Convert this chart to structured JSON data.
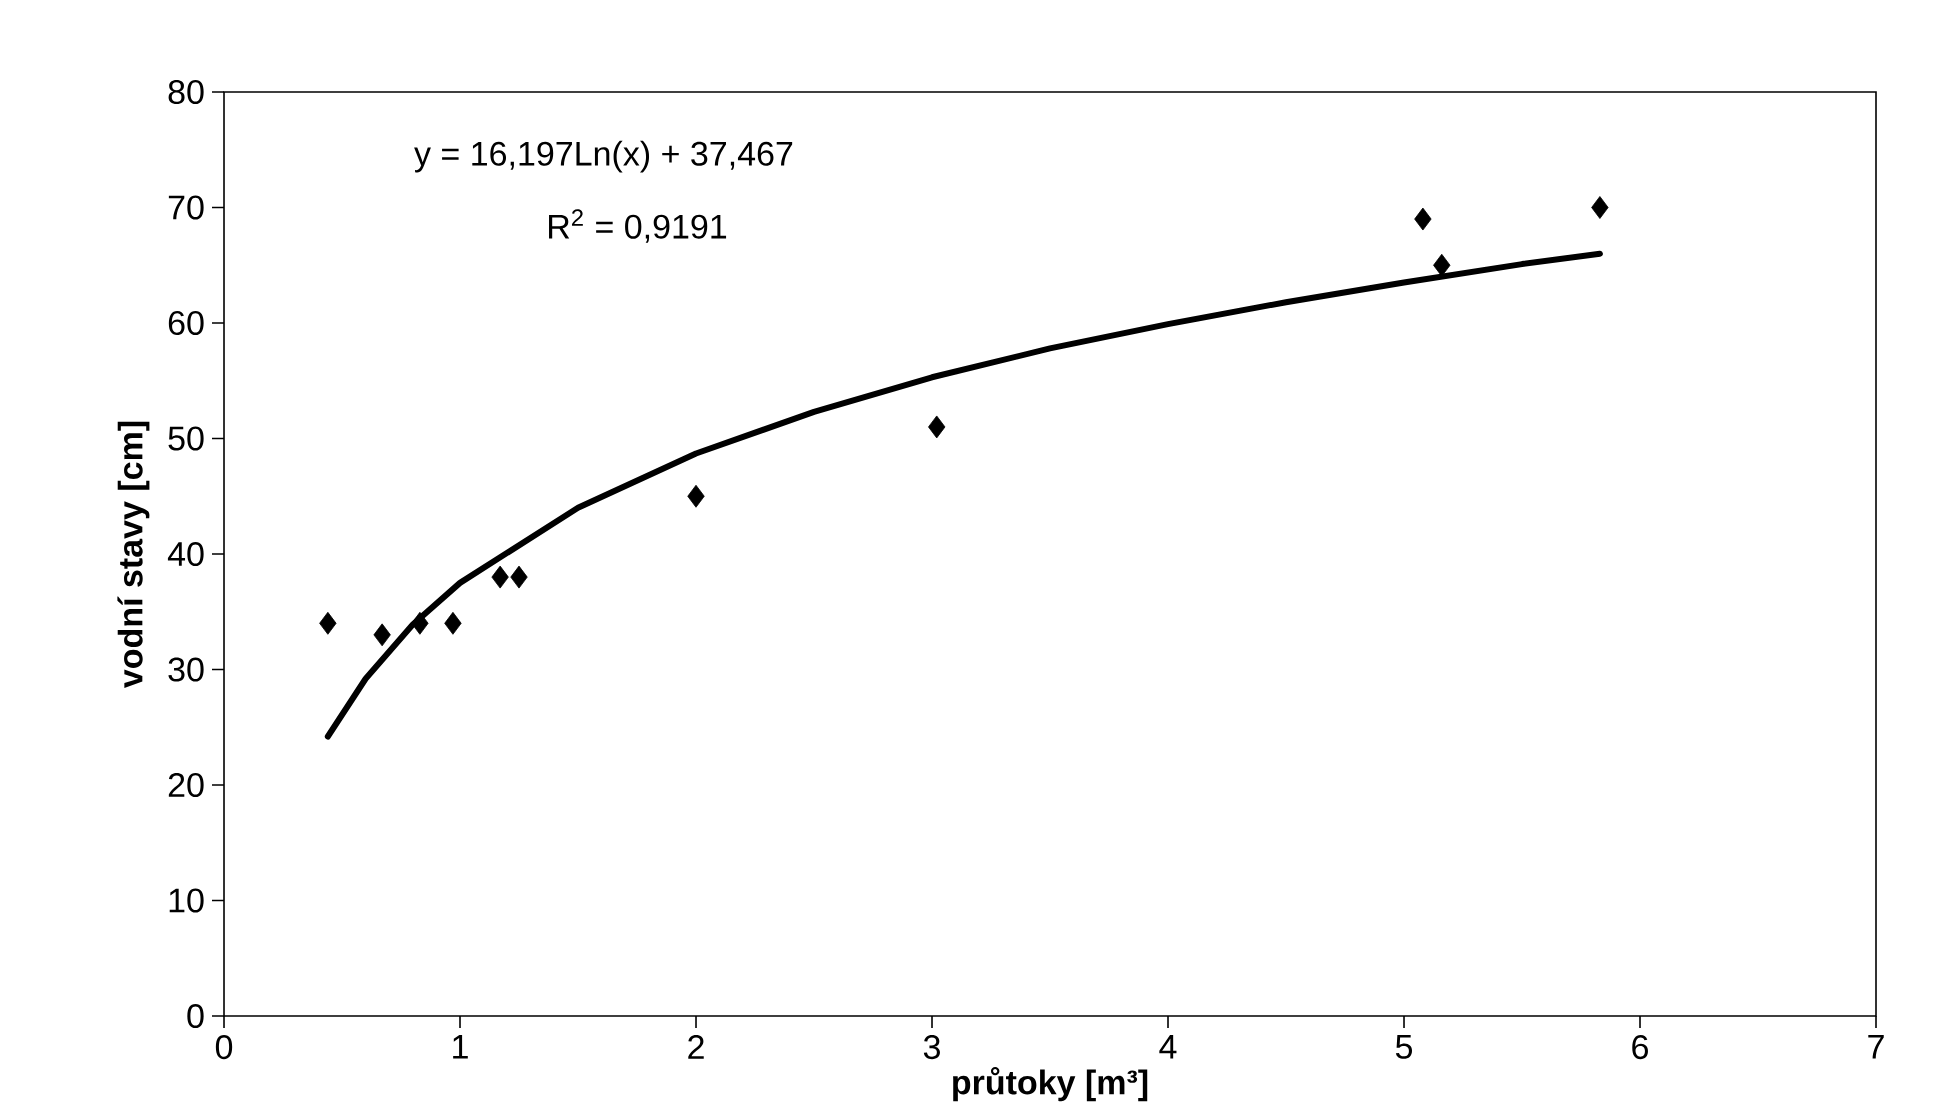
{
  "chart_data": {
    "type": "scatter",
    "xlabel": "průtoky [m³]",
    "ylabel": "vodní stavy [cm]",
    "annotations": [
      "y = 16,197Ln(x) + 37,467",
      "R$^{2}$ = 0,9191"
    ],
    "series": [
      {
        "type": "scatter",
        "color": "#000000",
        "marker": "diamond",
        "x": [
          0.44,
          0.67,
          0.83,
          0.97,
          1.17,
          1.25,
          2.0,
          3.02,
          5.08,
          5.16,
          5.83
        ],
        "values": [
          34,
          33,
          34,
          34,
          38,
          38,
          45,
          51,
          69,
          65,
          70
        ]
      },
      {
        "type": "line",
        "color": "#000000",
        "marker": "none",
        "line_style": "solid",
        "x": [
          0.44,
          0.6,
          0.8,
          1,
          1.5,
          2,
          2.5,
          3,
          3.5,
          4,
          4.5,
          5,
          5.5,
          5.83
        ],
        "values": [
          24.2,
          29.2,
          33.9,
          37.5,
          44.0,
          48.7,
          52.3,
          55.3,
          57.8,
          59.9,
          61.8,
          63.5,
          65.1,
          66.0
        ]
      }
    ],
    "xlim": [
      0,
      7
    ],
    "ylim": [
      0,
      80
    ],
    "xticks": [
      0,
      1,
      2,
      3,
      4,
      5,
      6,
      7
    ],
    "yticks": [
      0,
      10,
      20,
      30,
      40,
      50,
      60,
      70,
      80
    ],
    "grid": false
  }
}
